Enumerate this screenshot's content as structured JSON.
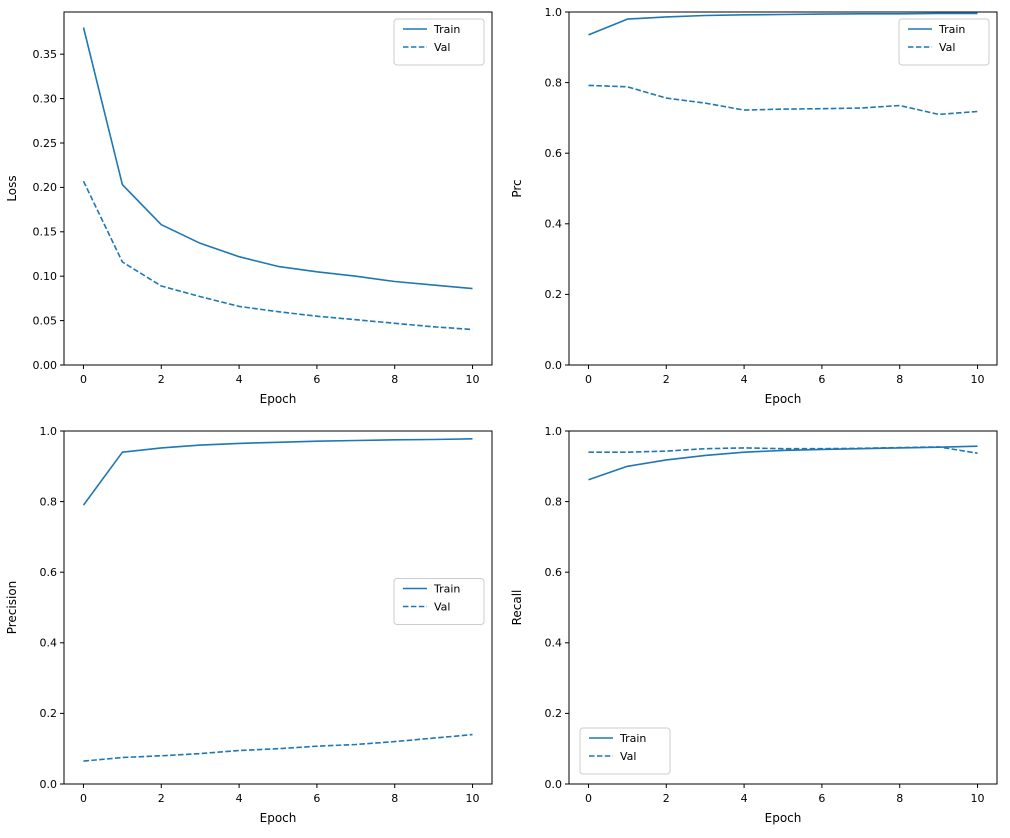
{
  "figure": {
    "background": "#ffffff"
  },
  "colors": {
    "line": "#1f77b4",
    "axis": "#000000",
    "text": "#000000",
    "legend_border": "#cccccc",
    "legend_background": "#ffffff"
  },
  "chart_data": [
    {
      "id": "loss",
      "type": "line",
      "title": "",
      "xlabel": "Epoch",
      "ylabel": "Loss",
      "x": [
        0,
        1,
        2,
        3,
        4,
        5,
        6,
        7,
        8,
        9,
        10
      ],
      "xlim": [
        -0.5,
        10.5
      ],
      "ylim": [
        0,
        0.3975
      ],
      "xticks": {
        "values": [
          0,
          2,
          4,
          6,
          8,
          10
        ],
        "labels": [
          "0",
          "2",
          "4",
          "6",
          "8",
          "10"
        ]
      },
      "yticks": {
        "values": [
          0.0,
          0.05,
          0.1,
          0.15,
          0.2,
          0.25,
          0.3,
          0.35
        ],
        "labels": [
          "0.00",
          "0.05",
          "0.10",
          "0.15",
          "0.20",
          "0.25",
          "0.30",
          "0.35"
        ]
      },
      "grid": false,
      "legend": {
        "position": "upper-right"
      },
      "series": [
        {
          "name": "Train",
          "line_style": "solid",
          "values": [
            0.38,
            0.203,
            0.158,
            0.137,
            0.122,
            0.111,
            0.105,
            0.1,
            0.094,
            0.09,
            0.086
          ]
        },
        {
          "name": "Val",
          "line_style": "dashed",
          "values": [
            0.207,
            0.116,
            0.089,
            0.077,
            0.066,
            0.06,
            0.055,
            0.051,
            0.047,
            0.043,
            0.04
          ]
        }
      ]
    },
    {
      "id": "prc",
      "type": "line",
      "title": "",
      "xlabel": "Epoch",
      "ylabel": "Prc",
      "x": [
        0,
        1,
        2,
        3,
        4,
        5,
        6,
        7,
        8,
        9,
        10
      ],
      "xlim": [
        -0.5,
        10.5
      ],
      "ylim": [
        0,
        1.0
      ],
      "xticks": {
        "values": [
          0,
          2,
          4,
          6,
          8,
          10
        ],
        "labels": [
          "0",
          "2",
          "4",
          "6",
          "8",
          "10"
        ]
      },
      "yticks": {
        "values": [
          0.0,
          0.2,
          0.4,
          0.6,
          0.8,
          1.0
        ],
        "labels": [
          "0.0",
          "0.2",
          "0.4",
          "0.6",
          "0.8",
          "1.0"
        ]
      },
      "grid": false,
      "legend": {
        "position": "upper-right"
      },
      "series": [
        {
          "name": "Train",
          "line_style": "solid",
          "values": [
            0.935,
            0.98,
            0.986,
            0.99,
            0.992,
            0.993,
            0.994,
            0.995,
            0.995,
            0.996,
            0.996
          ]
        },
        {
          "name": "Val",
          "line_style": "dashed",
          "values": [
            0.792,
            0.788,
            0.756,
            0.742,
            0.722,
            0.725,
            0.726,
            0.728,
            0.735,
            0.71,
            0.718
          ]
        }
      ]
    },
    {
      "id": "precision",
      "type": "line",
      "title": "",
      "xlabel": "Epoch",
      "ylabel": "Precision",
      "x": [
        0,
        1,
        2,
        3,
        4,
        5,
        6,
        7,
        8,
        9,
        10
      ],
      "xlim": [
        -0.5,
        10.5
      ],
      "ylim": [
        0,
        1.0
      ],
      "xticks": {
        "values": [
          0,
          2,
          4,
          6,
          8,
          10
        ],
        "labels": [
          "0",
          "2",
          "4",
          "6",
          "8",
          "10"
        ]
      },
      "yticks": {
        "values": [
          0.0,
          0.2,
          0.4,
          0.6,
          0.8,
          1.0
        ],
        "labels": [
          "0.0",
          "0.2",
          "0.4",
          "0.6",
          "0.8",
          "1.0"
        ]
      },
      "grid": false,
      "legend": {
        "position": "center-right"
      },
      "series": [
        {
          "name": "Train",
          "line_style": "solid",
          "values": [
            0.79,
            0.94,
            0.952,
            0.96,
            0.965,
            0.968,
            0.971,
            0.973,
            0.975,
            0.976,
            0.978
          ]
        },
        {
          "name": "Val",
          "line_style": "dashed",
          "values": [
            0.065,
            0.075,
            0.08,
            0.086,
            0.095,
            0.1,
            0.107,
            0.112,
            0.12,
            0.13,
            0.14
          ]
        }
      ]
    },
    {
      "id": "recall",
      "type": "line",
      "title": "",
      "xlabel": "Epoch",
      "ylabel": "Recall",
      "x": [
        0,
        1,
        2,
        3,
        4,
        5,
        6,
        7,
        8,
        9,
        10
      ],
      "xlim": [
        -0.5,
        10.5
      ],
      "ylim": [
        0,
        1.0
      ],
      "xticks": {
        "values": [
          0,
          2,
          4,
          6,
          8,
          10
        ],
        "labels": [
          "0",
          "2",
          "4",
          "6",
          "8",
          "10"
        ]
      },
      "yticks": {
        "values": [
          0.0,
          0.2,
          0.4,
          0.6,
          0.8,
          1.0
        ],
        "labels": [
          "0.0",
          "0.2",
          "0.4",
          "0.6",
          "0.8",
          "1.0"
        ]
      },
      "grid": false,
      "legend": {
        "position": "lower-left"
      },
      "series": [
        {
          "name": "Train",
          "line_style": "solid",
          "values": [
            0.862,
            0.9,
            0.918,
            0.931,
            0.94,
            0.945,
            0.948,
            0.95,
            0.952,
            0.954,
            0.957
          ]
        },
        {
          "name": "Val",
          "line_style": "dashed",
          "values": [
            0.94,
            0.94,
            0.943,
            0.95,
            0.952,
            0.95,
            0.95,
            0.951,
            0.953,
            0.955,
            0.937
          ]
        }
      ]
    }
  ]
}
